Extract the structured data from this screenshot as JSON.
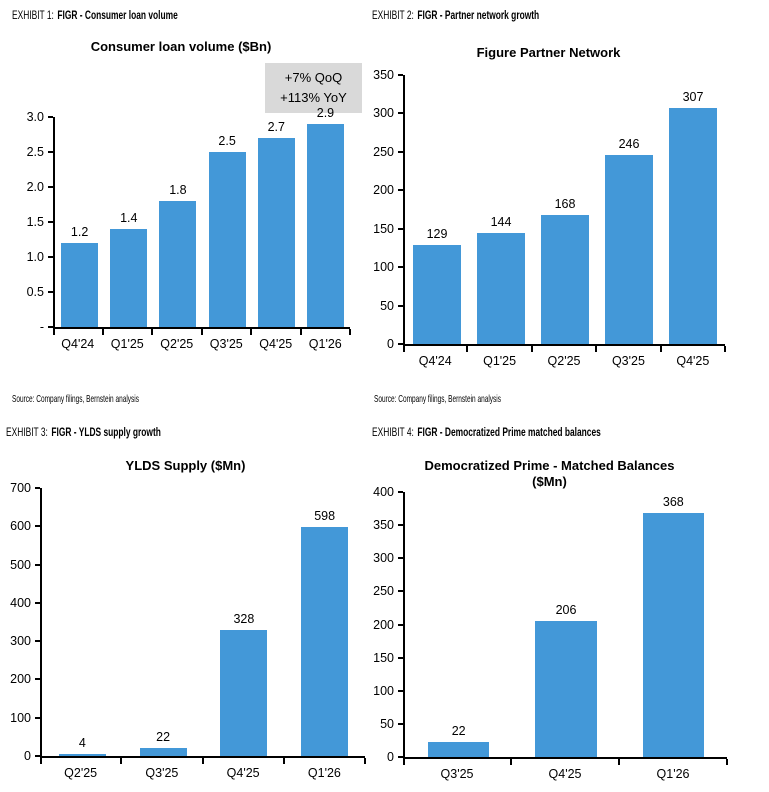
{
  "colors": {
    "bar": "#4398d8",
    "annotation_bg": "#d9d9d9",
    "axis": "#000000",
    "text": "#000000",
    "background": "#ffffff"
  },
  "exhibits": [
    {
      "label": "EXHIBIT 1:",
      "title": "FIGR - Consumer loan volume",
      "source": "Source: Company filings, Bernstein analysis"
    },
    {
      "label": "EXHIBIT 2:",
      "title": "FIGR - Partner network growth",
      "source": "Source: Company filings, Bernstein analysis"
    },
    {
      "label": "EXHIBIT 3:",
      "title": "FIGR - YLDS supply growth"
    },
    {
      "label": "EXHIBIT 4:",
      "title": "FIGR - Democratized Prime matched balances"
    }
  ],
  "chart_data": [
    {
      "type": "bar",
      "title": "Consumer loan volume ($Bn)",
      "title_lines": [
        "Consumer loan volume ($Bn)"
      ],
      "categories": [
        "Q4'24",
        "Q1'25",
        "Q2'25",
        "Q3'25",
        "Q4'25",
        "Q1'26"
      ],
      "values": [
        1.2,
        1.4,
        1.8,
        2.5,
        2.7,
        2.9
      ],
      "labels": [
        "1.2",
        "1.4",
        "1.8",
        "2.5",
        "2.7",
        "2.9"
      ],
      "ylim": [
        0,
        3.0
      ],
      "yticks": [
        "3.0",
        "2.5",
        "2.0",
        "1.5",
        "1.0",
        "0.5",
        "-"
      ],
      "grid": false,
      "legend": false,
      "annotation": {
        "lines": [
          "+7% QoQ",
          "+113% YoY"
        ]
      }
    },
    {
      "type": "bar",
      "title": "Figure Partner Network",
      "title_lines": [
        "Figure Partner Network"
      ],
      "categories": [
        "Q4'24",
        "Q1'25",
        "Q2'25",
        "Q3'25",
        "Q4'25"
      ],
      "values": [
        129,
        144,
        168,
        246,
        307
      ],
      "labels": [
        "129",
        "144",
        "168",
        "246",
        "307"
      ],
      "ylim": [
        0,
        350
      ],
      "yticks": [
        "350",
        "300",
        "250",
        "200",
        "150",
        "100",
        "50",
        "0"
      ],
      "grid": false,
      "legend": false
    },
    {
      "type": "bar",
      "title": "YLDS Supply ($Mn)",
      "title_lines": [
        "YLDS Supply ($Mn)"
      ],
      "categories": [
        "Q2'25",
        "Q3'25",
        "Q4'25",
        "Q1'26"
      ],
      "values": [
        4,
        22,
        328,
        598
      ],
      "labels": [
        "4",
        "22",
        "328",
        "598"
      ],
      "ylim": [
        0,
        700
      ],
      "yticks": [
        "700",
        "600",
        "500",
        "400",
        "300",
        "200",
        "100",
        "0"
      ],
      "grid": false,
      "legend": false
    },
    {
      "type": "bar",
      "title": "Democratized Prime - Matched Balances ($Mn)",
      "title_lines": [
        "Democratized Prime - Matched Balances",
        "($Mn)"
      ],
      "categories": [
        "Q3'25",
        "Q4'25",
        "Q1'26"
      ],
      "values": [
        22,
        206,
        368
      ],
      "labels": [
        "22",
        "206",
        "368"
      ],
      "ylim": [
        0,
        400
      ],
      "yticks": [
        "400",
        "350",
        "300",
        "250",
        "200",
        "150",
        "100",
        "50",
        "0"
      ],
      "grid": false,
      "legend": false
    }
  ]
}
